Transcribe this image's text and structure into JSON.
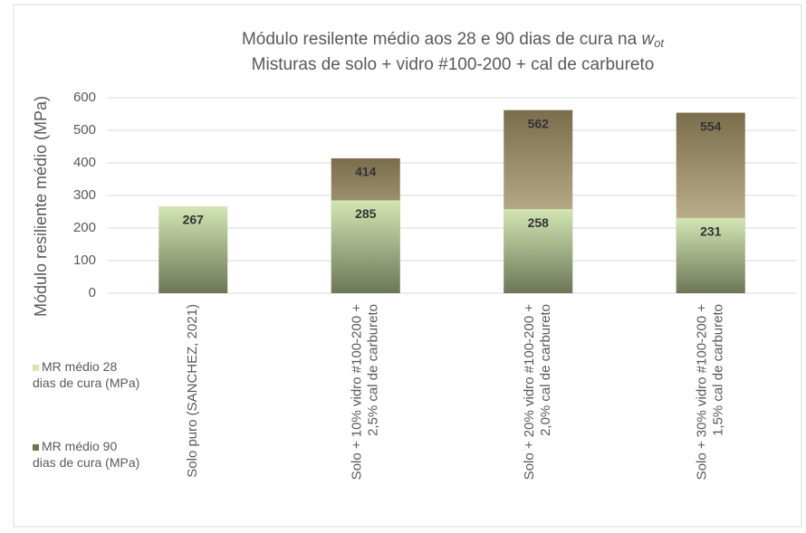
{
  "chart_data": {
    "type": "bar",
    "title": {
      "text": "Módulo resilente médio aos 28 e 90 dias de cura na ",
      "symbol": "w",
      "subscript": "ot"
    },
    "subtitle": "Misturas de solo + vidro #100-200 + cal de carbureto",
    "y_label": "Módulo resiliente médio (MPa)",
    "categories": [
      [
        "Solo puro (SANCHEZ, 2021)"
      ],
      [
        "Solo + 10% vidro #100-200 +",
        "2,5% cal de carbureto"
      ],
      [
        "Solo + 20% vidro #100-200 +",
        "2,0% cal de carbureto"
      ],
      [
        "Solo + 30% vidro #100-200 +",
        "1,5% cal de carbureto"
      ]
    ],
    "series": [
      {
        "name": "MR médio 28 dias de cura (MPa)",
        "color": "#d3e6b3",
        "values": [
          267,
          285,
          258,
          231
        ]
      },
      {
        "name": "MR médio 90 dias de cura (MPa)",
        "color": "#7a6d4c",
        "values": [
          null,
          414,
          562,
          554
        ]
      }
    ],
    "ylim": [
      0,
      600
    ],
    "yticks": [
      0,
      100,
      200,
      300,
      400,
      500,
      600
    ],
    "grid": true,
    "legend": "left"
  }
}
